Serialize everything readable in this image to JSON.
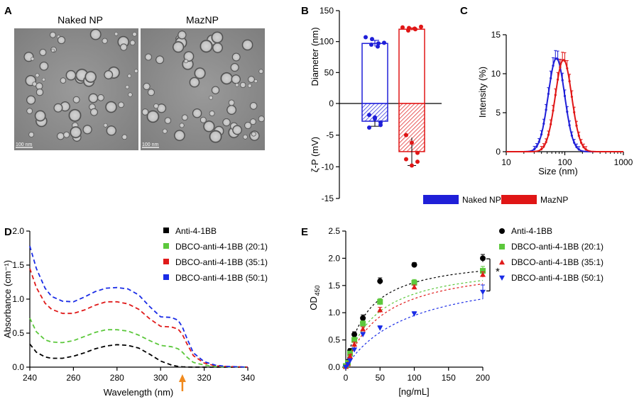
{
  "panel_labels": {
    "a": "A",
    "b": "B",
    "c": "C",
    "d": "D",
    "e": "E"
  },
  "panel_a": {
    "titles": [
      "Naked NP",
      "MazNP"
    ],
    "scale_bar": "100 nm"
  },
  "colors": {
    "naked": "#1f1fd8",
    "maz": "#e01616",
    "black": "#000000",
    "green": "#5cc83c",
    "red": "#e01a1a",
    "blue": "#1a2ce6",
    "orange": "#f08a1e"
  },
  "chart_data": [
    {
      "id": "B",
      "type": "bar",
      "ylabel_top": "Diameter (nm)",
      "ylabel_bottom": "ζ-P (mV)",
      "ylim": [
        -15,
        150
      ],
      "y_ticks": [
        "150",
        "100",
        "50",
        "0",
        "-5",
        "-10",
        "-15"
      ],
      "legend": [
        "Naked NP",
        "MazNP"
      ],
      "diameter": [
        {
          "name": "Naked NP",
          "mean": 97,
          "err": 5,
          "points": [
            107,
            104,
            97,
            95,
            92,
            98
          ]
        },
        {
          "name": "MazNP",
          "mean": 120,
          "err": 2,
          "points": [
            123,
            122,
            120,
            118,
            121,
            124
          ]
        }
      ],
      "zeta": [
        {
          "name": "Naked NP",
          "mean": -2.8,
          "err": 0.8,
          "points": [
            -1.8,
            -2.4,
            -3.0,
            -3.8,
            -2.2,
            -3.4
          ]
        },
        {
          "name": "MazNP",
          "mean": -7.6,
          "err": 2.2,
          "points": [
            -5.0,
            -6.2,
            -7.8,
            -8.8,
            -9.8,
            -9.2
          ]
        }
      ]
    },
    {
      "id": "C",
      "type": "line",
      "xscale": "log",
      "xlim": [
        10,
        1000
      ],
      "ylim": [
        0,
        15
      ],
      "x_ticks": [
        "10",
        "100",
        "1000"
      ],
      "y_ticks": [
        "0",
        "5",
        "10",
        "15"
      ],
      "xlabel": "Size (nm)",
      "ylabel": "Intensity (%)",
      "series": [
        {
          "name": "Naked NP",
          "peak_x": 72,
          "peak_y": 12.0,
          "width": 0.14
        },
        {
          "name": "MazNP",
          "peak_x": 95,
          "peak_y": 11.8,
          "width": 0.14
        }
      ]
    },
    {
      "id": "D",
      "type": "line",
      "xlabel": "Wavelength (nm)",
      "ylabel": "Absorbance (cm⁻¹)",
      "xlim": [
        240,
        340
      ],
      "ylim": [
        0,
        2.0
      ],
      "x_ticks": [
        "240",
        "260",
        "280",
        "300",
        "320",
        "340"
      ],
      "y_ticks": [
        "0.0",
        "0.5",
        "1.0",
        "1.5",
        "2.0"
      ],
      "arrow_at": 310,
      "series": [
        {
          "name": "Anti-4-1BB",
          "x": [
            240,
            243,
            247,
            250,
            255,
            260,
            265,
            270,
            275,
            280,
            285,
            290,
            295,
            300,
            305,
            308,
            310,
            312,
            315,
            320,
            325,
            330,
            340
          ],
          "y": [
            0.34,
            0.22,
            0.15,
            0.13,
            0.13,
            0.16,
            0.21,
            0.27,
            0.31,
            0.33,
            0.32,
            0.28,
            0.19,
            0.09,
            0.03,
            0.01,
            0.005,
            0.002,
            0,
            0,
            0,
            0,
            0
          ]
        },
        {
          "name": "DBCO-anti-4-1BB (20:1)",
          "x": [
            240,
            243,
            247,
            250,
            255,
            260,
            265,
            270,
            275,
            280,
            285,
            290,
            295,
            300,
            305,
            308,
            310,
            312,
            315,
            320,
            325,
            330,
            340
          ],
          "y": [
            0.72,
            0.52,
            0.4,
            0.37,
            0.36,
            0.39,
            0.45,
            0.51,
            0.55,
            0.55,
            0.53,
            0.47,
            0.39,
            0.32,
            0.3,
            0.27,
            0.22,
            0.15,
            0.07,
            0.03,
            0.01,
            0.005,
            0
          ]
        },
        {
          "name": "DBCO-anti-4-1BB (35:1)",
          "x": [
            240,
            243,
            247,
            250,
            255,
            260,
            265,
            270,
            275,
            280,
            285,
            290,
            295,
            300,
            305,
            308,
            310,
            312,
            315,
            320,
            325,
            330,
            340
          ],
          "y": [
            1.45,
            1.17,
            0.94,
            0.85,
            0.79,
            0.79,
            0.84,
            0.91,
            0.96,
            0.96,
            0.93,
            0.85,
            0.71,
            0.6,
            0.59,
            0.56,
            0.48,
            0.35,
            0.17,
            0.06,
            0.02,
            0.01,
            0
          ]
        },
        {
          "name": "DBCO-anti-4-1BB (50:1)",
          "x": [
            240,
            243,
            247,
            250,
            255,
            260,
            265,
            270,
            275,
            280,
            285,
            290,
            295,
            300,
            305,
            308,
            310,
            312,
            315,
            320,
            325,
            330,
            340
          ],
          "y": [
            1.78,
            1.45,
            1.16,
            1.04,
            0.97,
            0.96,
            1.03,
            1.11,
            1.16,
            1.17,
            1.15,
            1.06,
            0.89,
            0.74,
            0.73,
            0.69,
            0.59,
            0.43,
            0.21,
            0.08,
            0.03,
            0.01,
            0
          ]
        }
      ]
    },
    {
      "id": "E",
      "type": "scatter",
      "xlabel": "[ng/mL]",
      "ylabel": "OD",
      "ylabel_sub": "450",
      "xlim": [
        0,
        200
      ],
      "ylim": [
        0,
        2.5
      ],
      "x_ticks": [
        "0",
        "50",
        "100",
        "150",
        "200"
      ],
      "y_ticks": [
        "0.0",
        "0.5",
        "1.0",
        "1.5",
        "2.0",
        "2.5"
      ],
      "significance": "*",
      "series": [
        {
          "name": "Anti-4-1BB",
          "marker": "circle",
          "x": [
            0,
            3.1,
            6.25,
            12.5,
            25,
            50,
            100,
            200
          ],
          "y": [
            0.02,
            0.1,
            0.3,
            0.6,
            0.9,
            1.58,
            1.88,
            2.0
          ],
          "err": [
            0.02,
            0.03,
            0.04,
            0.05,
            0.06,
            0.06,
            0.04,
            0.07
          ],
          "fit_max": 2.05,
          "fit_k": 32
        },
        {
          "name": "DBCO-anti-4-1BB (20:1)",
          "marker": "square",
          "x": [
            0,
            3.1,
            6.25,
            12.5,
            25,
            50,
            100,
            200
          ],
          "y": [
            0.02,
            0.08,
            0.25,
            0.5,
            0.8,
            1.2,
            1.55,
            1.77
          ],
          "err": [
            0.02,
            0.03,
            0.04,
            0.05,
            0.05,
            0.06,
            0.06,
            0.08
          ],
          "fit_max": 1.95,
          "fit_k": 45
        },
        {
          "name": "DBCO-anti-4-1BB (35:1)",
          "marker": "triangle-up",
          "x": [
            0,
            3.1,
            6.25,
            12.5,
            25,
            50,
            100,
            200
          ],
          "y": [
            0.01,
            0.06,
            0.2,
            0.42,
            0.7,
            1.05,
            1.47,
            1.7
          ],
          "err": [
            0.01,
            0.02,
            0.03,
            0.04,
            0.04,
            0.05,
            0.04,
            0.05
          ],
          "fit_max": 1.95,
          "fit_k": 55
        },
        {
          "name": "DBCO-anti-4-1BB (50:1)",
          "marker": "triangle-down",
          "x": [
            0,
            3.1,
            6.25,
            12.5,
            25,
            50,
            100,
            200
          ],
          "y": [
            0.0,
            0.05,
            0.12,
            0.32,
            0.6,
            0.72,
            0.98,
            1.38
          ],
          "err": [
            0.01,
            0.02,
            0.03,
            0.03,
            0.04,
            0.04,
            0.04,
            0.13
          ],
          "fit_max": 1.85,
          "fit_k": 95
        }
      ]
    }
  ]
}
